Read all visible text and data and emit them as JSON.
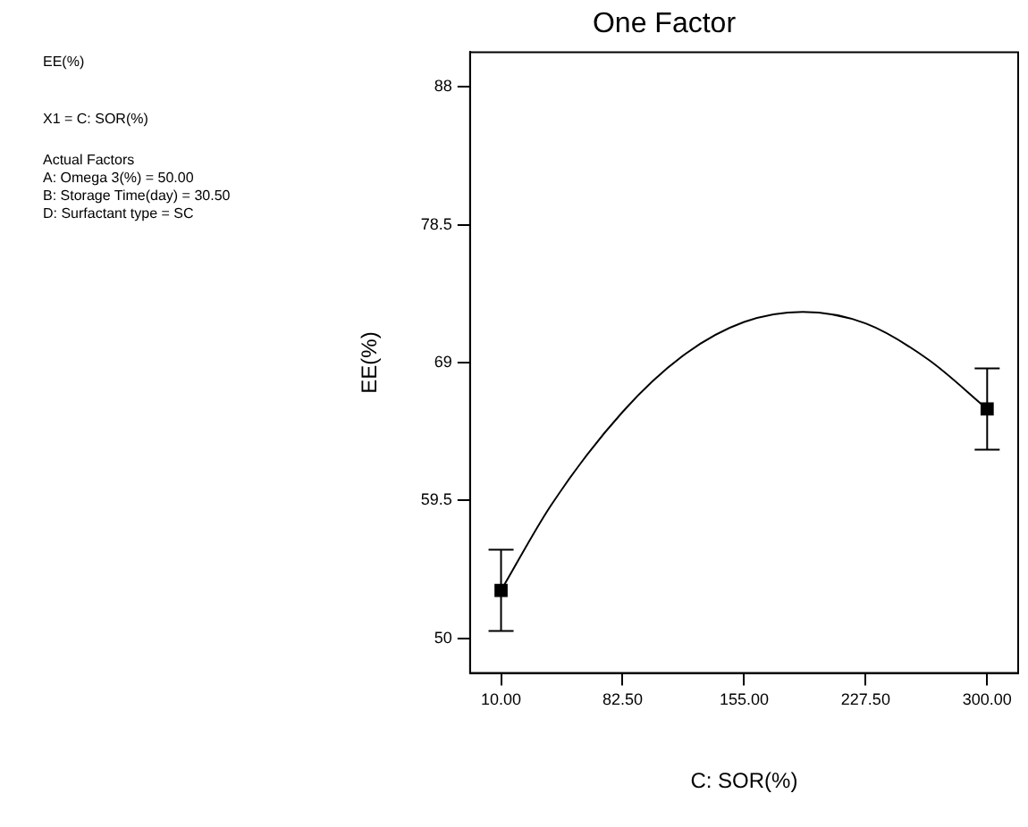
{
  "chart_data": {
    "type": "scatter",
    "title": "One Factor",
    "xlabel": "C: SOR(%)",
    "ylabel": "EE(%)",
    "annotations": [
      "EE(%)",
      "X1 = C: SOR(%)",
      "Actual Factors\nA: Omega 3(%) = 50.00\nB: Storage Time(day) = 30.50\nD: Surfactant type = SC"
    ],
    "series": [
      {
        "type": "line",
        "color": "#000000",
        "marker": "none",
        "x": [
          10,
          40,
          82.5,
          120,
          155,
          190,
          227.5,
          265,
          300
        ],
        "values": [
          53.3,
          59.2,
          65.6,
          69.6,
          71.8,
          72.5,
          71.7,
          69.2,
          65.8
        ]
      },
      {
        "color": "#000000",
        "marker": "square",
        "x": [
          10,
          300
        ],
        "values": [
          53.3,
          65.8
        ],
        "errors": [
          2.8,
          2.8
        ]
      }
    ],
    "xlim": [
      -8.5,
      318.5
    ],
    "ylim": [
      47.6,
      90.4
    ],
    "xticks": [
      {
        "value": 10,
        "label": "10.00"
      },
      {
        "value": 82.5,
        "label": "82.50"
      },
      {
        "value": 155,
        "label": "155.00"
      },
      {
        "value": 227.5,
        "label": "227.50"
      },
      {
        "value": 300,
        "label": "300.00"
      }
    ],
    "yticks": [
      50,
      59.5,
      69,
      78.5,
      88
    ],
    "grid": false,
    "legend": false
  }
}
